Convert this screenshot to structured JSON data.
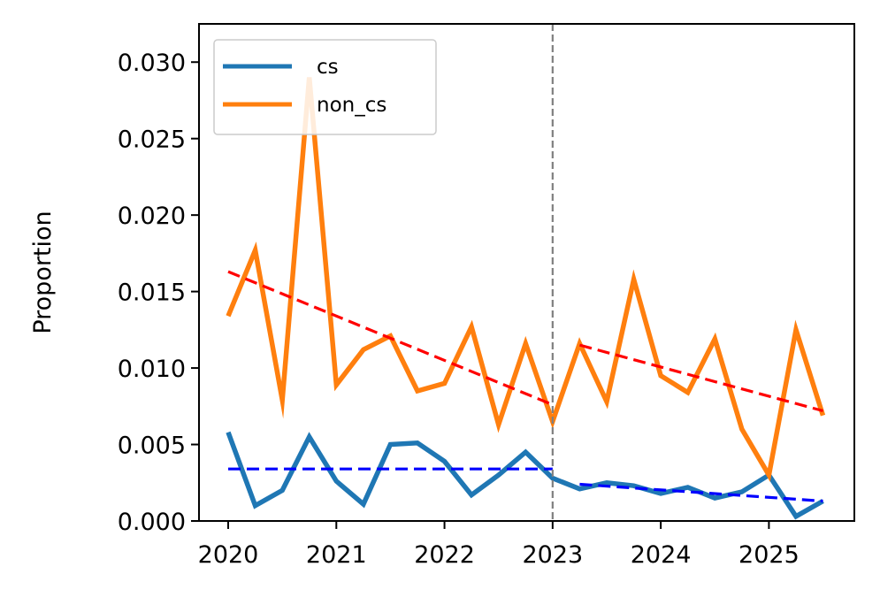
{
  "chart_data": {
    "type": "line",
    "title": "",
    "xlabel": "",
    "ylabel": "Proportion",
    "xlim": [
      2019.73,
      2025.79
    ],
    "ylim": [
      0.0,
      0.0325
    ],
    "xticks": [
      2020,
      2021,
      2022,
      2023,
      2024,
      2025
    ],
    "xtick_labels": [
      "2020",
      "2021",
      "2022",
      "2023",
      "2024",
      "2025"
    ],
    "yticks": [
      0.0,
      0.005,
      0.01,
      0.015,
      0.02,
      0.025,
      0.03
    ],
    "ytick_labels": [
      "0.000",
      "0.005",
      "0.010",
      "0.015",
      "0.020",
      "0.025",
      "0.030"
    ],
    "grid": false,
    "legend_position": "top-left",
    "series": [
      {
        "name": "cs",
        "color": "#1f77b4",
        "x": [
          2020.0,
          2020.25,
          2020.5,
          2020.75,
          2021.0,
          2021.25,
          2021.5,
          2021.75,
          2022.0,
          2022.25,
          2022.5,
          2022.75,
          2023.0,
          2023.25,
          2023.5,
          2023.75,
          2024.0,
          2024.25,
          2024.5,
          2024.75,
          2025.0,
          2025.25,
          2025.5
        ],
        "values": [
          0.0058,
          0.001,
          0.002,
          0.0055,
          0.0026,
          0.0011,
          0.005,
          0.0051,
          0.0039,
          0.0017,
          0.003,
          0.0045,
          0.0028,
          0.0021,
          0.0025,
          0.0023,
          0.0018,
          0.0022,
          0.0015,
          0.0019,
          0.003,
          0.0003,
          0.0013
        ]
      },
      {
        "name": "non_cs",
        "color": "#ff7f0e",
        "x": [
          2020.0,
          2020.25,
          2020.5,
          2020.75,
          2021.0,
          2021.25,
          2021.5,
          2021.75,
          2022.0,
          2022.25,
          2022.5,
          2022.75,
          2023.0,
          2023.25,
          2023.5,
          2023.75,
          2024.0,
          2024.25,
          2024.5,
          2024.75,
          2025.0,
          2025.25,
          2025.5
        ],
        "values": [
          0.0134,
          0.0177,
          0.0079,
          0.029,
          0.0089,
          0.0112,
          0.0121,
          0.0085,
          0.009,
          0.0127,
          0.0063,
          0.0116,
          0.0065,
          0.0116,
          0.0078,
          0.0158,
          0.0095,
          0.0084,
          0.0119,
          0.006,
          0.003,
          0.0125,
          0.0069
        ]
      }
    ],
    "trend_lines": [
      {
        "color": "#0000ff",
        "style": "dashed",
        "x": [
          2020.0,
          2023.0
        ],
        "values": [
          0.0034,
          0.0034
        ]
      },
      {
        "color": "#0000ff",
        "style": "dashed",
        "x": [
          2023.25,
          2025.5
        ],
        "values": [
          0.0024,
          0.0013
        ]
      },
      {
        "color": "#ff0000",
        "style": "dashed",
        "x": [
          2020.0,
          2023.0
        ],
        "values": [
          0.0163,
          0.0076
        ]
      },
      {
        "color": "#ff0000",
        "style": "dashed",
        "x": [
          2023.25,
          2025.5
        ],
        "values": [
          0.0115,
          0.0072
        ]
      }
    ],
    "vline": {
      "x": 2023.0,
      "color": "#808080",
      "style": "dashed"
    }
  }
}
